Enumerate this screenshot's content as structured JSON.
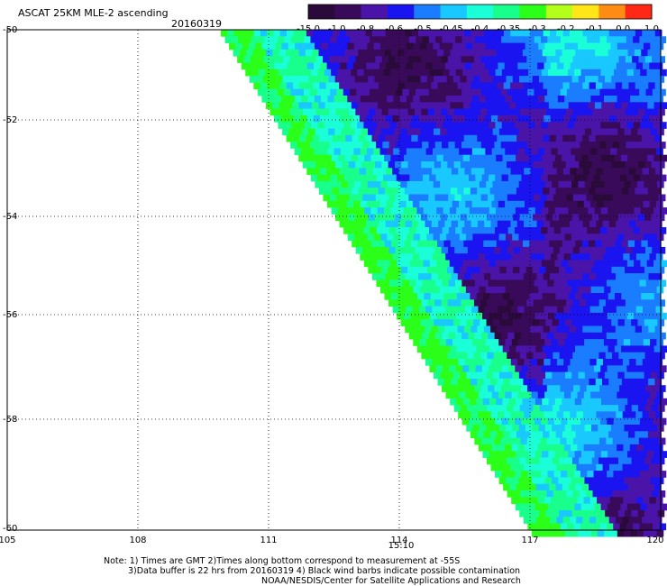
{
  "header": {
    "title": "ASCAT 25KM MLE-2 ascending",
    "date": "20160319"
  },
  "colorbar": {
    "labels": [
      "-15.0",
      "-1.0",
      "-0.8",
      "-0.6",
      "-0.5",
      "-0.45",
      "-0.4",
      "-0.35",
      "-0.3",
      "-0.2",
      "-0.1",
      "0.0",
      "1.0"
    ],
    "colors": [
      "#2a0a3a",
      "#3a0a5a",
      "#4a14a8",
      "#1a14f0",
      "#1a7cff",
      "#19c8ff",
      "#1affd8",
      "#19ff8c",
      "#2bff19",
      "#b4ff19",
      "#ffe619",
      "#ff8c14",
      "#ff2814"
    ]
  },
  "map": {
    "lon_ticks": [
      "105",
      "108",
      "111",
      "114",
      "117",
      "120"
    ],
    "lat_ticks": [
      "-50",
      "-52",
      "-54",
      "-56",
      "-58",
      "-60"
    ],
    "time_label": "15:10",
    "time_color": "#cc2200"
  },
  "footer": {
    "line1": "Note: 1) Times are GMT 2)Times along bottom correspond to measurement at -55S",
    "line2": "3)Data buffer is 22 hrs from 20160319 4) Black wind barbs indicate possible contamination",
    "line3": "NOAA/NESDIS/Center for Satellite Applications and Research"
  }
}
